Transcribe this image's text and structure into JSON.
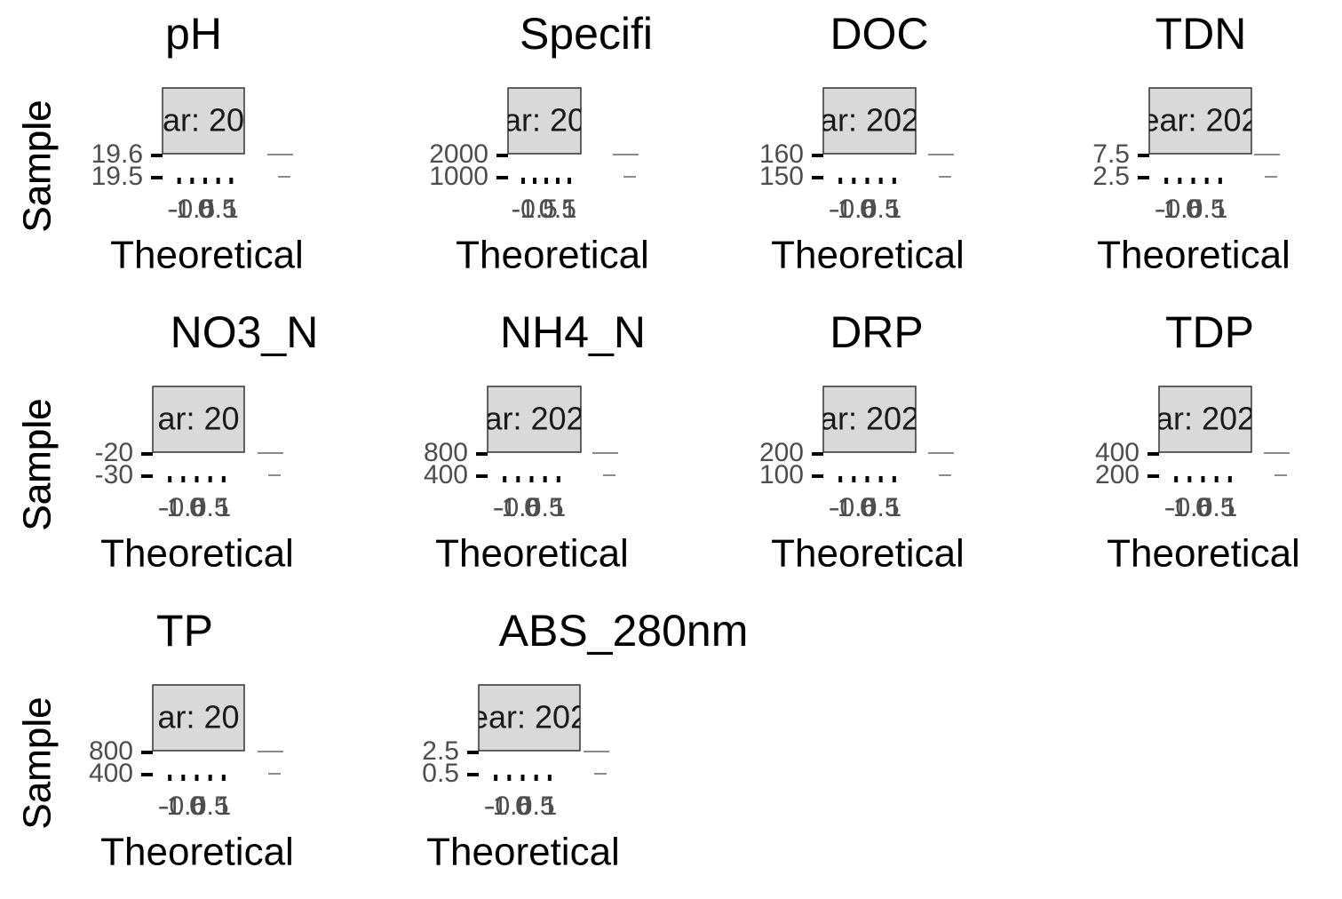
{
  "chart_data": [
    {
      "type": "qq",
      "title": "pH",
      "strip": "ar: 20",
      "xlabel": "Theoretical",
      "ylabel": "Sample",
      "xlim": [
        -1.5,
        1.5
      ],
      "xticks": [
        -1,
        -0.5,
        0,
        0.5,
        1
      ],
      "ylim": [
        19.5,
        19.6
      ],
      "yticks": [
        19.5,
        19.6
      ]
    },
    {
      "type": "qq",
      "title": "Specifi",
      "strip": "ar: 20",
      "xlabel": "Theoretical",
      "ylabel": "Sample",
      "xlim": [
        -1.5,
        1.5
      ],
      "xticks": [
        -1,
        -0.5,
        0,
        0.5,
        1
      ],
      "ylim": [
        1000,
        2000
      ],
      "yticks": [
        1000,
        2000
      ]
    },
    {
      "type": "qq",
      "title": "DOC",
      "strip": "ar: 202",
      "xlabel": "Theoretical",
      "ylabel": "Sample",
      "xlim": [
        -1.5,
        1.5
      ],
      "xticks": [
        -1,
        -0.5,
        0,
        0.5,
        1
      ],
      "ylim": [
        150,
        160
      ],
      "yticks": [
        150,
        160
      ]
    },
    {
      "type": "qq",
      "title": "TDN",
      "strip": "ear: 202",
      "xlabel": "Theoretical",
      "ylabel": "Sample",
      "xlim": [
        -1.5,
        1.5
      ],
      "xticks": [
        -1,
        -0.5,
        0,
        0.5,
        1
      ],
      "ylim": [
        2.5,
        7.5
      ],
      "yticks": [
        2.5,
        7.5
      ]
    },
    {
      "type": "qq",
      "title": "NO3_N",
      "strip": "ar: 20",
      "xlabel": "Theoretical",
      "ylabel": "Sample",
      "xlim": [
        -1.5,
        1.5
      ],
      "xticks": [
        -1,
        -0.5,
        0,
        0.5,
        1
      ],
      "ylim": [
        -30,
        -20
      ],
      "yticks": [
        -30,
        -20
      ]
    },
    {
      "type": "qq",
      "title": "NH4_N",
      "strip": "ar: 202",
      "xlabel": "Theoretical",
      "ylabel": "Sample",
      "xlim": [
        -1.5,
        1.5
      ],
      "xticks": [
        -1,
        -0.5,
        0,
        0.5,
        1
      ],
      "ylim": [
        400,
        800
      ],
      "yticks": [
        400,
        800
      ]
    },
    {
      "type": "qq",
      "title": "DRP",
      "strip": "ar: 202",
      "xlabel": "Theoretical",
      "ylabel": "Sample",
      "xlim": [
        -1.5,
        1.5
      ],
      "xticks": [
        -1,
        -0.5,
        0,
        0.5,
        1
      ],
      "ylim": [
        100,
        200
      ],
      "yticks": [
        100,
        200
      ]
    },
    {
      "type": "qq",
      "title": "TDP",
      "strip": "ar: 202",
      "xlabel": "Theoretical",
      "ylabel": "Sample",
      "xlim": [
        -1.5,
        1.5
      ],
      "xticks": [
        -1,
        -0.5,
        0,
        0.5,
        1
      ],
      "ylim": [
        200,
        400
      ],
      "yticks": [
        200,
        400
      ]
    },
    {
      "type": "qq",
      "title": "TP",
      "strip": "ar: 20",
      "xlabel": "Theoretical",
      "ylabel": "Sample",
      "xlim": [
        -1.5,
        1.5
      ],
      "xticks": [
        -1,
        -0.5,
        0,
        0.5,
        1
      ],
      "ylim": [
        400,
        800
      ],
      "yticks": [
        800,
        400
      ]
    },
    {
      "type": "qq",
      "title": "ABS_280nm",
      "strip": "ear: 202",
      "xlabel": "Theoretical",
      "ylabel": "Sample",
      "xlim": [
        -1.5,
        1.5
      ],
      "xticks": [
        -1,
        -0.5,
        0,
        0.5,
        1
      ],
      "ylim": [
        0.5,
        2.5
      ],
      "yticks": [
        0.5,
        2.5
      ]
    }
  ]
}
